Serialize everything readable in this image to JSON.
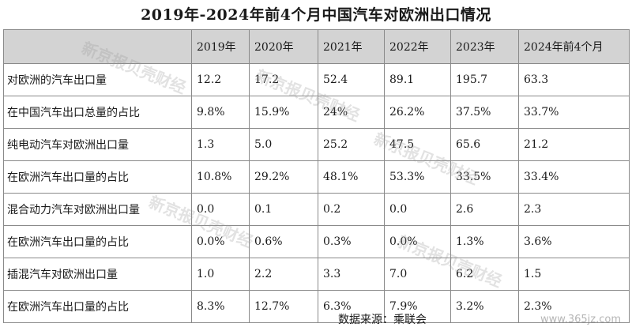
{
  "title": "2019年-2024年前4个月中国汽车对欧洲出口情况",
  "table": {
    "headers": [
      "2019年",
      "2020年",
      "2021年",
      "2022年",
      "2023年",
      "2024年前4个月"
    ],
    "rows": [
      {
        "label": "对欧洲的汽车出口量",
        "values": [
          "12.2",
          "17.2",
          "52.4",
          "89.1",
          "195.7",
          "63.3"
        ]
      },
      {
        "label": "在中国汽车出口总量的占比",
        "values": [
          "9.8%",
          "15.9%",
          "24%",
          "26.2%",
          "37.5%",
          "33.7%"
        ]
      },
      {
        "label": "纯电动汽车对欧洲出口量",
        "values": [
          "1.3",
          "5.0",
          "25.2",
          "47.5",
          "65.6",
          "21.2"
        ]
      },
      {
        "label": "在欧洲汽车出口量的占比",
        "values": [
          "10.8%",
          "29.2%",
          "48.1%",
          "53.3%",
          "33.5%",
          "33.4%"
        ]
      },
      {
        "label": "混合动力汽车对欧洲出口量",
        "values": [
          "0.0",
          "0.1",
          "0.2",
          "0.0",
          "2.6",
          "2.3"
        ]
      },
      {
        "label": "在欧洲汽车出口量的占比",
        "values": [
          "0.0%",
          "0.6%",
          "0.3%",
          "0.0%",
          "1.3%",
          "3.6%"
        ]
      },
      {
        "label": "插混汽车对欧洲出口量",
        "values": [
          "1.0",
          "2.2",
          "3.3",
          "7.0",
          "6.2",
          "1.5"
        ]
      },
      {
        "label": "在欧洲汽车出口量的占比",
        "values": [
          "8.3%",
          "12.7%",
          "6.3%",
          "7.9%",
          "3.2%",
          "2.3%"
        ]
      }
    ]
  },
  "source": "数据来源：乘联会",
  "watermark": {
    "text": "新京报贝壳财经",
    "url": "www.365jz.com"
  }
}
